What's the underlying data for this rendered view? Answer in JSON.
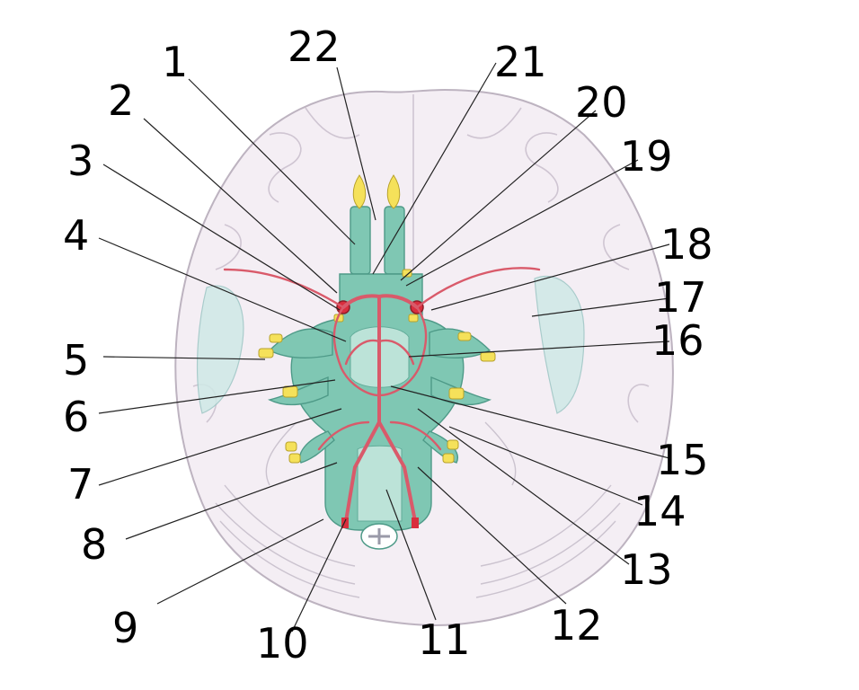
{
  "diagram": {
    "labels": [
      {
        "id": "l1",
        "text": "1"
      },
      {
        "id": "l2",
        "text": "2"
      },
      {
        "id": "l3",
        "text": "3"
      },
      {
        "id": "l4",
        "text": "4"
      },
      {
        "id": "l5",
        "text": "5"
      },
      {
        "id": "l6",
        "text": "6"
      },
      {
        "id": "l7",
        "text": "7"
      },
      {
        "id": "l8",
        "text": "8"
      },
      {
        "id": "l9",
        "text": "9"
      },
      {
        "id": "l10",
        "text": "10"
      },
      {
        "id": "l11",
        "text": "11"
      },
      {
        "id": "l12",
        "text": "12"
      },
      {
        "id": "l13",
        "text": "13"
      },
      {
        "id": "l14",
        "text": "14"
      },
      {
        "id": "l15",
        "text": "15"
      },
      {
        "id": "l16",
        "text": "16"
      },
      {
        "id": "l17",
        "text": "17"
      },
      {
        "id": "l18",
        "text": "18"
      },
      {
        "id": "l19",
        "text": "19"
      },
      {
        "id": "l20",
        "text": "20"
      },
      {
        "id": "l21",
        "text": "21"
      },
      {
        "id": "l22",
        "text": "22"
      }
    ],
    "colors": {
      "brain": "#f4eef4",
      "brainstem": "#7fc7b3",
      "arteries": "#d95a6a",
      "nerves": "#f5e15a"
    }
  }
}
